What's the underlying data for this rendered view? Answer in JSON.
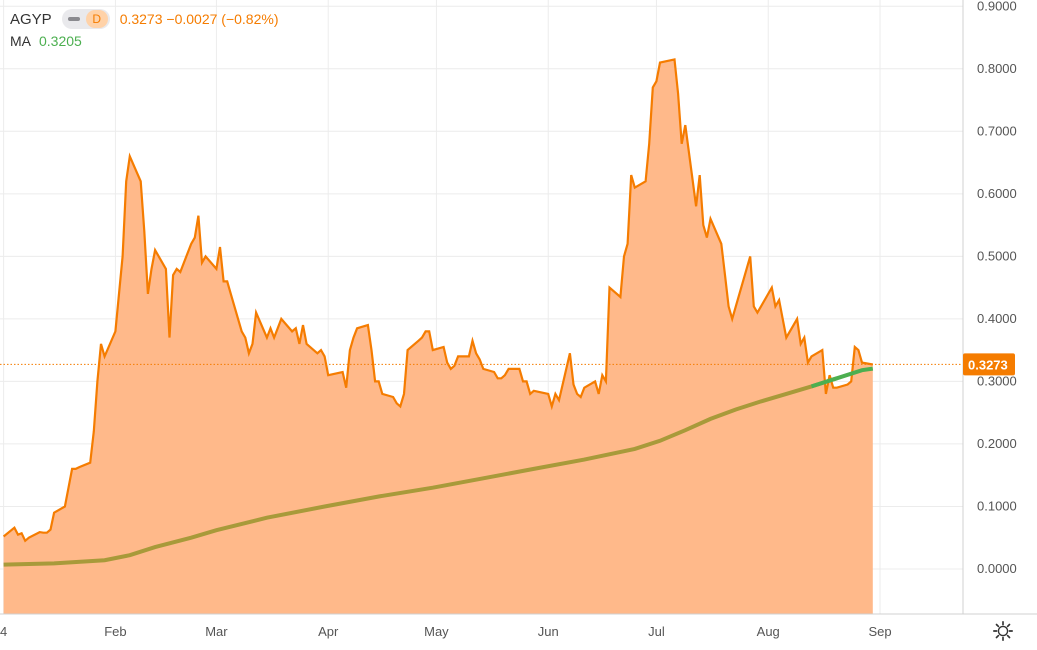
{
  "legend": {
    "symbol": "AGYP",
    "interval": "D",
    "quote": "0.3273  −0.0027 (−0.82%)",
    "ma_label": "MA",
    "ma_value": "0.3205"
  },
  "price_tag": "0.3273",
  "colors": {
    "line": "#f57c00",
    "area": "#ffb98a",
    "ma": "#a89a3a",
    "ma_recent": "#4caf50",
    "last_price": "#f57c00",
    "grid": "#ececec",
    "axis_text": "#555555"
  },
  "icons": {
    "settings": "gear-icon"
  },
  "chart_data": {
    "type": "area",
    "title": "",
    "xlabel": "",
    "ylabel": "",
    "ylim": [
      -0.072,
      0.91
    ],
    "yticks": [
      "0.9000",
      "0.8000",
      "0.7000",
      "0.6000",
      "0.5000",
      "0.4000",
      "0.3000",
      "0.2000",
      "0.1000",
      "0.0000"
    ],
    "ytick_values": [
      0.9,
      0.8,
      0.7,
      0.6,
      0.5,
      0.4,
      0.3,
      0.2,
      0.1,
      0.0
    ],
    "xlim": [
      "2020-12-31",
      "2021-09-24"
    ],
    "xticks": [
      {
        "label": "4",
        "date": "2021-01-01"
      },
      {
        "label": "Feb",
        "date": "2021-02-01"
      },
      {
        "label": "Mar",
        "date": "2021-03-01"
      },
      {
        "label": "Apr",
        "date": "2021-04-01"
      },
      {
        "label": "May",
        "date": "2021-05-01"
      },
      {
        "label": "Jun",
        "date": "2021-06-01"
      },
      {
        "label": "Jul",
        "date": "2021-07-01"
      },
      {
        "label": "Aug",
        "date": "2021-08-01"
      },
      {
        "label": "Sep",
        "date": "2021-09-01"
      }
    ],
    "last_value": 0.3273,
    "grid": true,
    "series": [
      {
        "values": [
          [
            "2021-01-01",
            0.052
          ],
          [
            "2021-01-04",
            0.066
          ],
          [
            "2021-01-05",
            0.055
          ],
          [
            "2021-01-06",
            0.057
          ],
          [
            "2021-01-07",
            0.045
          ],
          [
            "2021-01-08",
            0.05
          ],
          [
            "2021-01-11",
            0.059
          ],
          [
            "2021-01-12",
            0.058
          ],
          [
            "2021-01-13",
            0.058
          ],
          [
            "2021-01-14",
            0.063
          ],
          [
            "2021-01-15",
            0.09
          ],
          [
            "2021-01-18",
            0.1
          ],
          [
            "2021-01-19",
            0.13
          ],
          [
            "2021-01-20",
            0.16
          ],
          [
            "2021-01-21",
            0.16
          ],
          [
            "2021-01-22",
            0.163
          ],
          [
            "2021-01-25",
            0.17
          ],
          [
            "2021-01-26",
            0.22
          ],
          [
            "2021-01-27",
            0.3
          ],
          [
            "2021-01-28",
            0.36
          ],
          [
            "2021-01-29",
            0.34
          ],
          [
            "2021-02-01",
            0.38
          ],
          [
            "2021-02-02",
            0.44
          ],
          [
            "2021-02-03",
            0.5
          ],
          [
            "2021-02-04",
            0.62
          ],
          [
            "2021-02-05",
            0.66
          ],
          [
            "2021-02-08",
            0.62
          ],
          [
            "2021-02-09",
            0.54
          ],
          [
            "2021-02-10",
            0.44
          ],
          [
            "2021-02-11",
            0.48
          ],
          [
            "2021-02-12",
            0.51
          ],
          [
            "2021-02-15",
            0.48
          ],
          [
            "2021-02-16",
            0.37
          ],
          [
            "2021-02-17",
            0.47
          ],
          [
            "2021-02-18",
            0.48
          ],
          [
            "2021-02-19",
            0.475
          ],
          [
            "2021-02-22",
            0.52
          ],
          [
            "2021-02-23",
            0.53
          ],
          [
            "2021-02-24",
            0.565
          ],
          [
            "2021-02-25",
            0.49
          ],
          [
            "2021-02-26",
            0.5
          ],
          [
            "2021-03-01",
            0.48
          ],
          [
            "2021-03-02",
            0.515
          ],
          [
            "2021-03-03",
            0.46
          ],
          [
            "2021-03-04",
            0.46
          ],
          [
            "2021-03-05",
            0.44
          ],
          [
            "2021-03-08",
            0.38
          ],
          [
            "2021-03-09",
            0.37
          ],
          [
            "2021-03-10",
            0.345
          ],
          [
            "2021-03-11",
            0.36
          ],
          [
            "2021-03-12",
            0.41
          ],
          [
            "2021-03-15",
            0.37
          ],
          [
            "2021-03-16",
            0.385
          ],
          [
            "2021-03-17",
            0.37
          ],
          [
            "2021-03-18",
            0.385
          ],
          [
            "2021-03-19",
            0.4
          ],
          [
            "2021-03-22",
            0.38
          ],
          [
            "2021-03-23",
            0.385
          ],
          [
            "2021-03-24",
            0.36
          ],
          [
            "2021-03-25",
            0.39
          ],
          [
            "2021-03-26",
            0.36
          ],
          [
            "2021-03-29",
            0.345
          ],
          [
            "2021-03-30",
            0.35
          ],
          [
            "2021-03-31",
            0.34
          ],
          [
            "2021-04-01",
            0.31
          ],
          [
            "2021-04-05",
            0.315
          ],
          [
            "2021-04-06",
            0.29
          ],
          [
            "2021-04-07",
            0.35
          ],
          [
            "2021-04-08",
            0.37
          ],
          [
            "2021-04-09",
            0.385
          ],
          [
            "2021-04-12",
            0.39
          ],
          [
            "2021-04-13",
            0.35
          ],
          [
            "2021-04-14",
            0.3
          ],
          [
            "2021-04-15",
            0.3
          ],
          [
            "2021-04-16",
            0.28
          ],
          [
            "2021-04-19",
            0.275
          ],
          [
            "2021-04-20",
            0.265
          ],
          [
            "2021-04-21",
            0.26
          ],
          [
            "2021-04-22",
            0.28
          ],
          [
            "2021-04-23",
            0.35
          ],
          [
            "2021-04-26",
            0.365
          ],
          [
            "2021-04-27",
            0.37
          ],
          [
            "2021-04-28",
            0.38
          ],
          [
            "2021-04-29",
            0.38
          ],
          [
            "2021-04-30",
            0.35
          ],
          [
            "2021-05-03",
            0.355
          ],
          [
            "2021-05-04",
            0.33
          ],
          [
            "2021-05-05",
            0.32
          ],
          [
            "2021-05-06",
            0.325
          ],
          [
            "2021-05-07",
            0.34
          ],
          [
            "2021-05-10",
            0.34
          ],
          [
            "2021-05-11",
            0.365
          ],
          [
            "2021-05-12",
            0.345
          ],
          [
            "2021-05-13",
            0.335
          ],
          [
            "2021-05-14",
            0.32
          ],
          [
            "2021-05-17",
            0.315
          ],
          [
            "2021-05-18",
            0.305
          ],
          [
            "2021-05-19",
            0.305
          ],
          [
            "2021-05-20",
            0.31
          ],
          [
            "2021-05-21",
            0.32
          ],
          [
            "2021-05-24",
            0.32
          ],
          [
            "2021-05-25",
            0.3
          ],
          [
            "2021-05-26",
            0.3
          ],
          [
            "2021-05-27",
            0.28
          ],
          [
            "2021-05-28",
            0.285
          ],
          [
            "2021-06-01",
            0.28
          ],
          [
            "2021-06-02",
            0.26
          ],
          [
            "2021-06-03",
            0.28
          ],
          [
            "2021-06-04",
            0.27
          ],
          [
            "2021-06-07",
            0.345
          ],
          [
            "2021-06-08",
            0.295
          ],
          [
            "2021-06-09",
            0.28
          ],
          [
            "2021-06-10",
            0.275
          ],
          [
            "2021-06-11",
            0.29
          ],
          [
            "2021-06-14",
            0.3
          ],
          [
            "2021-06-15",
            0.28
          ],
          [
            "2021-06-16",
            0.31
          ],
          [
            "2021-06-17",
            0.3
          ],
          [
            "2021-06-18",
            0.45
          ],
          [
            "2021-06-21",
            0.435
          ],
          [
            "2021-06-22",
            0.5
          ],
          [
            "2021-06-23",
            0.52
          ],
          [
            "2021-06-24",
            0.63
          ],
          [
            "2021-06-25",
            0.61
          ],
          [
            "2021-06-28",
            0.62
          ],
          [
            "2021-06-29",
            0.68
          ],
          [
            "2021-06-30",
            0.77
          ],
          [
            "2021-07-01",
            0.78
          ],
          [
            "2021-07-02",
            0.81
          ],
          [
            "2021-07-06",
            0.815
          ],
          [
            "2021-07-07",
            0.76
          ],
          [
            "2021-07-08",
            0.68
          ],
          [
            "2021-07-09",
            0.71
          ],
          [
            "2021-07-12",
            0.58
          ],
          [
            "2021-07-13",
            0.63
          ],
          [
            "2021-07-14",
            0.55
          ],
          [
            "2021-07-15",
            0.53
          ],
          [
            "2021-07-16",
            0.56
          ],
          [
            "2021-07-19",
            0.52
          ],
          [
            "2021-07-20",
            0.47
          ],
          [
            "2021-07-21",
            0.42
          ],
          [
            "2021-07-22",
            0.4
          ],
          [
            "2021-07-23",
            0.42
          ],
          [
            "2021-07-26",
            0.48
          ],
          [
            "2021-07-27",
            0.5
          ],
          [
            "2021-07-28",
            0.42
          ],
          [
            "2021-07-29",
            0.41
          ],
          [
            "2021-07-30",
            0.42
          ],
          [
            "2021-08-02",
            0.45
          ],
          [
            "2021-08-03",
            0.42
          ],
          [
            "2021-08-04",
            0.43
          ],
          [
            "2021-08-05",
            0.4
          ],
          [
            "2021-08-06",
            0.37
          ],
          [
            "2021-08-09",
            0.4
          ],
          [
            "2021-08-10",
            0.36
          ],
          [
            "2021-08-11",
            0.37
          ],
          [
            "2021-08-12",
            0.33
          ],
          [
            "2021-08-13",
            0.34
          ],
          [
            "2021-08-16",
            0.35
          ],
          [
            "2021-08-17",
            0.28
          ],
          [
            "2021-08-18",
            0.31
          ],
          [
            "2021-08-19",
            0.29
          ],
          [
            "2021-08-20",
            0.29
          ],
          [
            "2021-08-23",
            0.295
          ],
          [
            "2021-08-24",
            0.3
          ],
          [
            "2021-08-25",
            0.355
          ],
          [
            "2021-08-26",
            0.35
          ],
          [
            "2021-08-27",
            0.33
          ],
          [
            "2021-08-30",
            0.327
          ]
        ]
      },
      {
        "label": "MA",
        "values": [
          [
            "2021-01-01",
            0.007
          ],
          [
            "2021-01-15",
            0.009
          ],
          [
            "2021-01-29",
            0.014
          ],
          [
            "2021-02-05",
            0.022
          ],
          [
            "2021-02-12",
            0.035
          ],
          [
            "2021-02-22",
            0.05
          ],
          [
            "2021-03-01",
            0.062
          ],
          [
            "2021-03-15",
            0.082
          ],
          [
            "2021-03-31",
            0.1
          ],
          [
            "2021-04-15",
            0.116
          ],
          [
            "2021-04-30",
            0.13
          ],
          [
            "2021-05-14",
            0.145
          ],
          [
            "2021-05-28",
            0.16
          ],
          [
            "2021-06-11",
            0.175
          ],
          [
            "2021-06-25",
            0.192
          ],
          [
            "2021-07-02",
            0.205
          ],
          [
            "2021-07-09",
            0.222
          ],
          [
            "2021-07-16",
            0.24
          ],
          [
            "2021-07-23",
            0.255
          ],
          [
            "2021-07-30",
            0.268
          ],
          [
            "2021-08-06",
            0.28
          ],
          [
            "2021-08-13",
            0.292
          ],
          [
            "2021-08-20",
            0.305
          ],
          [
            "2021-08-27",
            0.318
          ],
          [
            "2021-08-30",
            0.3205
          ]
        ],
        "recent_from": "2021-08-19"
      }
    ]
  }
}
